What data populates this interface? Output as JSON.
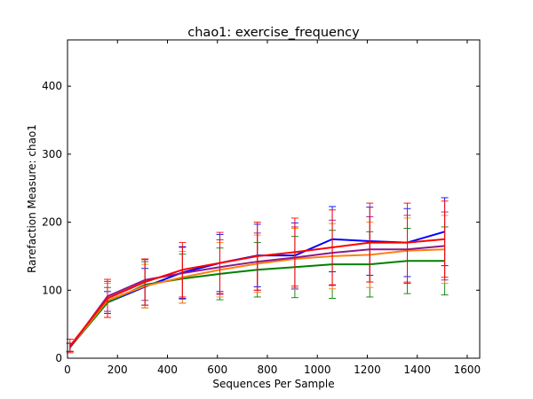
{
  "chart_data": {
    "type": "line",
    "title": "chao1: exercise_frequency",
    "xlabel": "Sequences Per Sample",
    "ylabel": "Rarefaction Measure: chao1",
    "xlim": [
      0,
      1650
    ],
    "ylim": [
      0,
      468
    ],
    "xticks": [
      0,
      200,
      400,
      600,
      800,
      1000,
      1200,
      1400,
      1600
    ],
    "yticks": [
      0,
      100,
      200,
      300,
      400
    ],
    "grid": false,
    "legend": "none",
    "x": [
      10,
      160,
      310,
      460,
      610,
      760,
      910,
      1060,
      1210,
      1360,
      1510
    ],
    "series": [
      {
        "color": "#0000ff",
        "values": [
          16,
          82,
          105,
          126,
          140,
          151,
          151,
          175,
          172,
          170,
          186
        ],
        "err": [
          6,
          16,
          27,
          38,
          42,
          46,
          48,
          48,
          50,
          50,
          50
        ]
      },
      {
        "color": "#008000",
        "values": [
          16,
          82,
          108,
          117,
          124,
          130,
          134,
          138,
          138,
          143,
          143
        ],
        "err": [
          6,
          22,
          34,
          36,
          38,
          40,
          45,
          50,
          48,
          48,
          50
        ]
      },
      {
        "color": "#ff7f0e",
        "values": [
          16,
          85,
          106,
          119,
          130,
          139,
          146,
          150,
          152,
          158,
          160
        ],
        "err": [
          6,
          25,
          32,
          38,
          40,
          42,
          45,
          48,
          48,
          48,
          50
        ]
      },
      {
        "color": "#8b1a8b",
        "values": [
          16,
          91,
          115,
          125,
          134,
          142,
          148,
          155,
          160,
          160,
          165
        ],
        "err": [
          6,
          22,
          30,
          38,
          40,
          42,
          45,
          48,
          48,
          50,
          50
        ]
      },
      {
        "color": "#ff0000",
        "values": [
          18,
          88,
          112,
          130,
          140,
          150,
          156,
          163,
          170,
          170,
          175
        ],
        "err": [
          10,
          28,
          34,
          40,
          45,
          50,
          50,
          55,
          58,
          58,
          56
        ]
      }
    ]
  }
}
